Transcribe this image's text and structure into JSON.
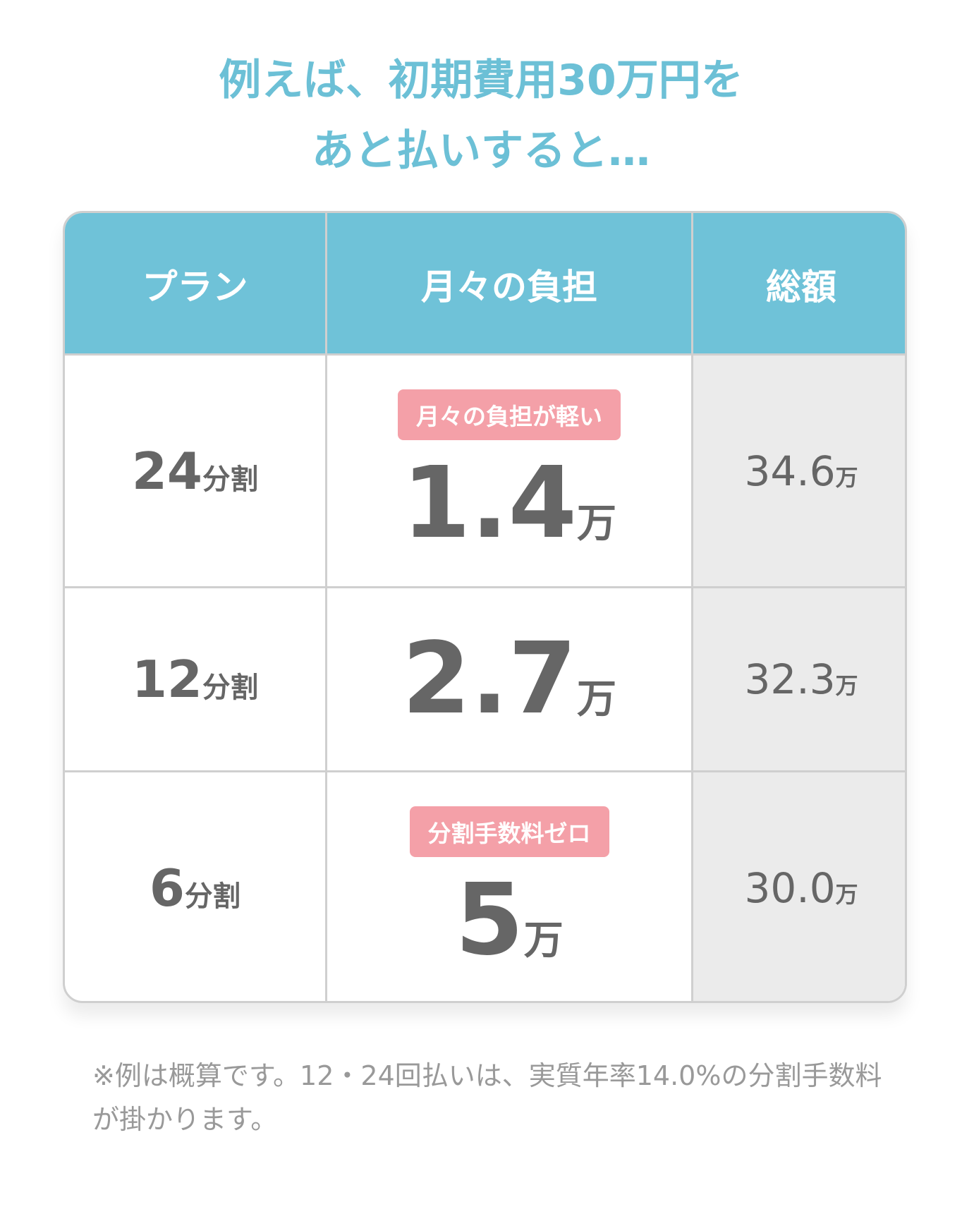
{
  "title": {
    "line1": "例えば、初期費用30万円を",
    "line2": "あと払いすると…"
  },
  "table": {
    "headers": [
      "プラン",
      "月々の負担",
      "総額"
    ],
    "unit": "万",
    "rows": [
      {
        "plan_num": "24",
        "plan_suffix": "分割",
        "badge": "月々の負担が軽い",
        "monthly": "1.4",
        "total": "34.6"
      },
      {
        "plan_num": "12",
        "plan_suffix": "分割",
        "badge": "",
        "monthly": "2.7",
        "total": "32.3"
      },
      {
        "plan_num": "6",
        "plan_suffix": "分割",
        "badge": "分割手数料ゼロ",
        "monthly": "5",
        "total": "30.0"
      }
    ]
  },
  "note": "※例は概算です。12・24回払いは、実質年率14.0%の分割手数料が掛かります。",
  "colors": {
    "accent": "#6fc2d8",
    "badge": "#f4a0a8",
    "total_bg": "#ebebeb"
  }
}
